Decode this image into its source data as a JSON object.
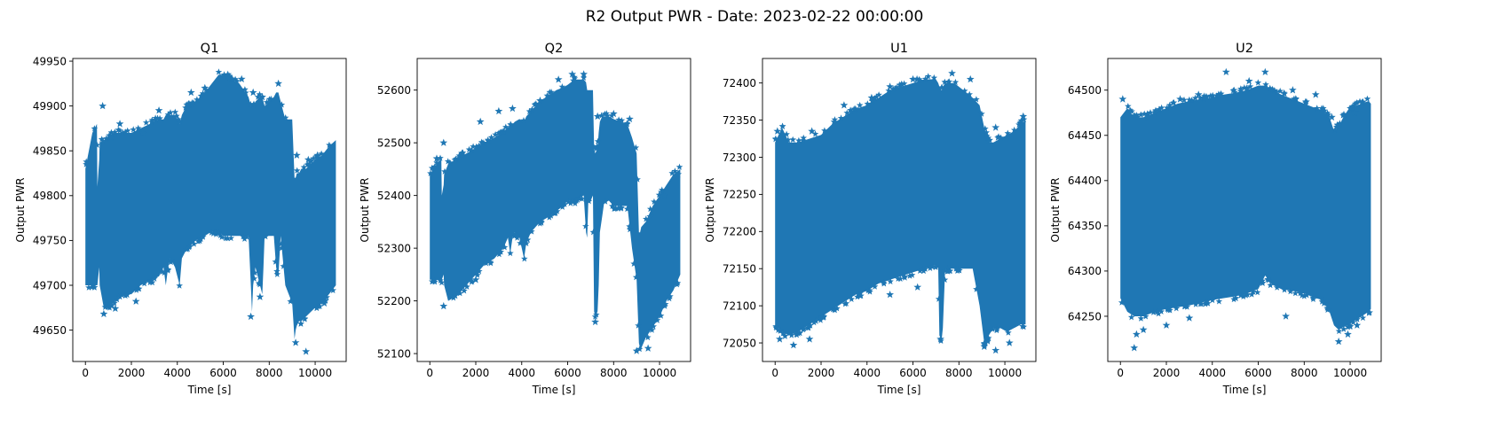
{
  "suptitle": "R2 Output PWR - Date: 2023-02-22 00:00:00",
  "series_color": "#1f77b4",
  "marker": "star",
  "chart_data": [
    {
      "type": "scatter",
      "title": "Q1",
      "xlabel": "Time [s]",
      "ylabel": "Output PWR",
      "xlim": [
        -550,
        11350
      ],
      "ylim": [
        49615,
        49953
      ],
      "xticks": [
        0,
        2000,
        4000,
        6000,
        8000,
        10000
      ],
      "yticks": [
        49650,
        49700,
        49750,
        49800,
        49850,
        49900,
        49950
      ],
      "grid": false,
      "band_x": [
        0,
        300,
        500,
        520,
        600,
        620,
        800,
        1200,
        1600,
        2000,
        2400,
        2800,
        3200,
        3400,
        3500,
        3600,
        3700,
        3900,
        4100,
        4200,
        4400,
        4600,
        4800,
        5200,
        5500,
        5800,
        6000,
        6300,
        6700,
        7100,
        7200,
        7250,
        7300,
        7400,
        7600,
        7700,
        7750,
        7800,
        8000,
        8200,
        8300,
        8400,
        8500,
        8700,
        9000,
        9100,
        9150,
        9200,
        9300,
        9400,
        9600,
        9800,
        10000,
        10300,
        10600,
        10900
      ],
      "band_low": [
        49700,
        49700,
        49700,
        49700,
        49720,
        49700,
        49675,
        49680,
        49690,
        49690,
        49700,
        49705,
        49710,
        49720,
        49700,
        49720,
        49730,
        49720,
        49700,
        49730,
        49740,
        49745,
        49750,
        49755,
        49760,
        49760,
        49755,
        49755,
        49755,
        49755,
        49700,
        49670,
        49700,
        49720,
        49700,
        49690,
        49720,
        49755,
        49755,
        49755,
        49720,
        49710,
        49755,
        49700,
        49680,
        49640,
        49650,
        49655,
        49660,
        49660,
        49665,
        49670,
        49675,
        49680,
        49690,
        49700
      ],
      "band_high": [
        49830,
        49870,
        49880,
        49810,
        49840,
        49860,
        49860,
        49870,
        49870,
        49870,
        49875,
        49880,
        49885,
        49885,
        49890,
        49890,
        49890,
        49890,
        49880,
        49890,
        49900,
        49900,
        49905,
        49915,
        49925,
        49935,
        49935,
        49930,
        49925,
        49910,
        49900,
        49900,
        49900,
        49905,
        49910,
        49910,
        49905,
        49900,
        49905,
        49910,
        49915,
        49915,
        49905,
        49885,
        49885,
        49820,
        49820,
        49825,
        49825,
        49830,
        49830,
        49835,
        49840,
        49845,
        49855,
        49862
      ],
      "outliers": [
        [
          750,
          49900
        ],
        [
          1100,
          49865
        ],
        [
          1500,
          49880
        ],
        [
          2500,
          49870
        ],
        [
          3200,
          49895
        ],
        [
          4600,
          49915
        ],
        [
          5200,
          49920
        ],
        [
          6200,
          49935
        ],
        [
          6800,
          49930
        ],
        [
          7300,
          49915
        ],
        [
          7700,
          49910
        ],
        [
          8400,
          49925
        ],
        [
          9200,
          49845
        ],
        [
          9700,
          49840
        ],
        [
          10100,
          49845
        ],
        [
          800,
          49668
        ],
        [
          1300,
          49674
        ],
        [
          2200,
          49682
        ],
        [
          7600,
          49687
        ],
        [
          9600,
          49626
        ],
        [
          9150,
          49636
        ],
        [
          7200,
          49665
        ],
        [
          10400,
          49680
        ]
      ]
    },
    {
      "type": "scatter",
      "title": "Q2",
      "xlabel": "Time [s]",
      "ylabel": "Output PWR",
      "xlim": [
        -550,
        11350
      ],
      "ylim": [
        52085,
        52660
      ],
      "xticks": [
        0,
        2000,
        4000,
        6000,
        8000,
        10000
      ],
      "yticks": [
        52100,
        52200,
        52300,
        52400,
        52500,
        52600
      ],
      "grid": false,
      "band_x": [
        0,
        300,
        500,
        520,
        600,
        620,
        800,
        1200,
        1600,
        2000,
        2400,
        2800,
        3200,
        3400,
        3500,
        3600,
        3700,
        3900,
        4100,
        4200,
        4400,
        4600,
        4800,
        5200,
        5500,
        5800,
        6000,
        6300,
        6700,
        6800,
        6850,
        6900,
        7000,
        7100,
        7150,
        7200,
        7300,
        7350,
        7400,
        7500,
        7600,
        7800,
        8000,
        8300,
        8600,
        8800,
        9000,
        9100,
        9150,
        9200,
        9400,
        9700,
        10000,
        10300,
        10600,
        10900
      ],
      "band_low": [
        52240,
        52240,
        52240,
        52240,
        52250,
        52230,
        52200,
        52210,
        52230,
        52250,
        52270,
        52280,
        52300,
        52320,
        52290,
        52320,
        52330,
        52320,
        52280,
        52310,
        52330,
        52340,
        52350,
        52360,
        52370,
        52380,
        52390,
        52390,
        52400,
        52330,
        52320,
        52390,
        52390,
        52400,
        52180,
        52170,
        52180,
        52230,
        52330,
        52360,
        52390,
        52390,
        52380,
        52380,
        52380,
        52300,
        52240,
        52120,
        52110,
        52110,
        52130,
        52150,
        52170,
        52200,
        52220,
        52250
      ],
      "band_high": [
        52440,
        52460,
        52470,
        52400,
        52420,
        52440,
        52460,
        52470,
        52480,
        52490,
        52500,
        52510,
        52520,
        52530,
        52530,
        52535,
        52540,
        52545,
        52540,
        52550,
        52560,
        52570,
        52580,
        52590,
        52600,
        52605,
        52610,
        52620,
        52620,
        52615,
        52600,
        52600,
        52600,
        52600,
        52490,
        52480,
        52490,
        52520,
        52540,
        52550,
        52550,
        52550,
        52545,
        52540,
        52535,
        52510,
        52480,
        52330,
        52330,
        52340,
        52350,
        52380,
        52400,
        52420,
        52440,
        52450
      ],
      "outliers": [
        [
          300,
          52470
        ],
        [
          600,
          52500
        ],
        [
          1400,
          52480
        ],
        [
          2200,
          52540
        ],
        [
          3000,
          52560
        ],
        [
          3600,
          52565
        ],
        [
          4800,
          52580
        ],
        [
          5600,
          52620
        ],
        [
          6200,
          52630
        ],
        [
          6700,
          52630
        ],
        [
          7300,
          52550
        ],
        [
          8000,
          52555
        ],
        [
          8700,
          52545
        ],
        [
          9600,
          52360
        ],
        [
          10200,
          52400
        ],
        [
          10800,
          52440
        ],
        [
          600,
          52190
        ],
        [
          1100,
          52210
        ],
        [
          2000,
          52240
        ],
        [
          9000,
          52105
        ],
        [
          9500,
          52110
        ],
        [
          7200,
          52160
        ]
      ]
    },
    {
      "type": "scatter",
      "title": "U1",
      "xlabel": "Time [s]",
      "ylabel": "Output PWR",
      "xlim": [
        -550,
        11350
      ],
      "ylim": [
        72025,
        72433
      ],
      "xticks": [
        0,
        2000,
        4000,
        6000,
        8000,
        10000
      ],
      "yticks": [
        72050,
        72100,
        72150,
        72200,
        72250,
        72300,
        72350,
        72400
      ],
      "grid": false,
      "band_x": [
        0,
        300,
        600,
        1000,
        1500,
        2000,
        2500,
        3000,
        3500,
        4000,
        4500,
        5000,
        5500,
        6000,
        6500,
        7000,
        7100,
        7150,
        7250,
        7300,
        7400,
        7800,
        8200,
        8600,
        8900,
        9100,
        9200,
        9300,
        9500,
        9800,
        10100,
        10400,
        10700,
        10900
      ],
      "band_low": [
        72075,
        72065,
        72060,
        72065,
        72075,
        72085,
        72095,
        72105,
        72115,
        72120,
        72130,
        72135,
        72140,
        72145,
        72150,
        72155,
        72150,
        72060,
        72055,
        72070,
        72150,
        72150,
        72150,
        72150,
        72100,
        72050,
        72045,
        72060,
        72070,
        72070,
        72065,
        72070,
        72075,
        72075
      ],
      "band_high": [
        72320,
        72340,
        72320,
        72320,
        72325,
        72330,
        72345,
        72355,
        72365,
        72370,
        72380,
        72390,
        72395,
        72400,
        72405,
        72405,
        72400,
        72395,
        72390,
        72395,
        72400,
        72400,
        72390,
        72380,
        72370,
        72340,
        72330,
        72320,
        72320,
        72325,
        72330,
        72335,
        72345,
        72350
      ],
      "outliers": [
        [
          100,
          72335
        ],
        [
          1600,
          72335
        ],
        [
          3000,
          72370
        ],
        [
          4200,
          72380
        ],
        [
          5000,
          72395
        ],
        [
          6000,
          72405
        ],
        [
          7700,
          72413
        ],
        [
          8500,
          72405
        ],
        [
          9600,
          72340
        ],
        [
          10800,
          72355
        ],
        [
          200,
          72055
        ],
        [
          800,
          72047
        ],
        [
          1500,
          72055
        ],
        [
          7200,
          72055
        ],
        [
          9100,
          72045
        ],
        [
          9600,
          72040
        ],
        [
          10200,
          72050
        ],
        [
          5000,
          72115
        ],
        [
          6200,
          72125
        ]
      ]
    },
    {
      "type": "scatter",
      "title": "U2",
      "xlabel": "Time [s]",
      "ylabel": "Output PWR",
      "xlim": [
        -550,
        11350
      ],
      "ylim": [
        64200,
        64535
      ],
      "xticks": [
        0,
        2000,
        4000,
        6000,
        8000,
        10000
      ],
      "yticks": [
        64250,
        64300,
        64350,
        64400,
        64450,
        64500
      ],
      "grid": false,
      "band_x": [
        0,
        300,
        600,
        1000,
        1500,
        2000,
        2500,
        3000,
        3500,
        4000,
        4500,
        5000,
        5500,
        6000,
        6300,
        6600,
        7000,
        7500,
        8000,
        8500,
        8800,
        9100,
        9300,
        9500,
        9700,
        9900,
        10200,
        10500,
        10800,
        10900
      ],
      "band_low": [
        64270,
        64255,
        64250,
        64250,
        64255,
        64258,
        64260,
        64262,
        64265,
        64268,
        64270,
        64272,
        64275,
        64280,
        64295,
        64285,
        64280,
        64278,
        64275,
        64270,
        64268,
        64255,
        64240,
        64235,
        64238,
        64240,
        64245,
        64250,
        64255,
        64258
      ],
      "band_high": [
        64470,
        64480,
        64470,
        64470,
        64475,
        64480,
        64485,
        64488,
        64490,
        64492,
        64495,
        64497,
        64500,
        64505,
        64505,
        64500,
        64495,
        64490,
        64485,
        64480,
        64478,
        64470,
        64455,
        64460,
        64470,
        64478,
        64482,
        64485,
        64488,
        64485
      ],
      "outliers": [
        [
          100,
          64490
        ],
        [
          1200,
          64470
        ],
        [
          2600,
          64490
        ],
        [
          3400,
          64495
        ],
        [
          4600,
          64520
        ],
        [
          5600,
          64510
        ],
        [
          6300,
          64520
        ],
        [
          7500,
          64500
        ],
        [
          8500,
          64495
        ],
        [
          9200,
          64470
        ],
        [
          10200,
          64475
        ],
        [
          700,
          64230
        ],
        [
          1000,
          64235
        ],
        [
          600,
          64215
        ],
        [
          2000,
          64240
        ],
        [
          3000,
          64248
        ],
        [
          7200,
          64250
        ],
        [
          9500,
          64222
        ],
        [
          9900,
          64230
        ],
        [
          10300,
          64240
        ]
      ]
    }
  ]
}
